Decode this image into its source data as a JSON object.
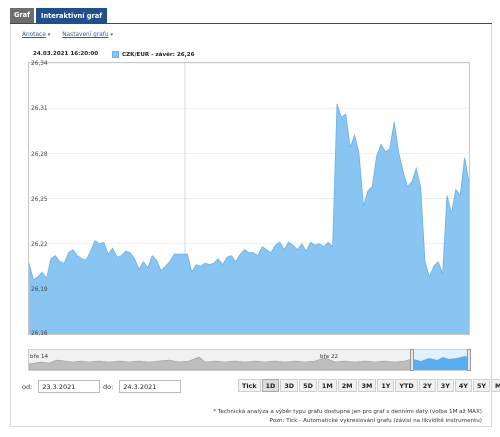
{
  "tabs": [
    {
      "label": "Graf",
      "active": false
    },
    {
      "label": "Interaktivní graf",
      "active": true
    }
  ],
  "menu": {
    "items": [
      {
        "label": "Anotace"
      },
      {
        "label": "Nastavení grafu"
      }
    ]
  },
  "chart": {
    "timestamp": "24.03.2021 16:20:00",
    "legend_label": "CZK/EUR - závěr: 26,26",
    "series_color": "#88c5f2",
    "line_color": "#6ab0e6",
    "y_ticks": [
      "26,34",
      "26,31",
      "26,28",
      "26,25",
      "26,22",
      "26,19",
      "26,16"
    ]
  },
  "chart_data": {
    "type": "area",
    "series": [
      {
        "name": "CZK/EUR",
        "values": [
          26.207,
          26.196,
          26.198,
          26.201,
          26.197,
          26.21,
          26.212,
          26.208,
          26.207,
          26.214,
          26.216,
          26.212,
          26.21,
          26.209,
          26.215,
          26.222,
          26.22,
          26.221,
          26.213,
          26.217,
          26.211,
          26.212,
          26.215,
          26.214,
          26.21,
          26.203,
          26.208,
          26.204,
          26.212,
          26.209,
          26.202,
          26.205,
          26.208,
          26.213,
          26.213,
          26.213,
          26.213,
          26.201,
          26.206,
          26.205,
          26.207,
          26.206,
          26.207,
          26.21,
          26.206,
          26.211,
          26.212,
          26.208,
          26.213,
          26.216,
          26.214,
          26.214,
          26.212,
          26.218,
          26.216,
          26.214,
          26.219,
          26.221,
          26.216,
          26.221,
          26.219,
          26.216,
          26.22,
          26.215,
          26.221,
          26.219,
          26.22,
          26.218,
          26.221,
          26.218,
          26.313,
          26.304,
          26.306,
          26.284,
          26.292,
          26.28,
          26.245,
          26.255,
          26.258,
          26.278,
          26.286,
          26.281,
          26.283,
          26.301,
          26.281,
          26.268,
          26.258,
          26.261,
          26.27,
          26.258,
          26.208,
          26.198,
          26.205,
          26.208,
          26.2,
          26.252,
          26.24,
          26.256,
          26.252,
          26.277,
          26.261
        ]
      }
    ],
    "ylim": [
      26.16,
      26.34
    ],
    "y_ticks": [
      26.16,
      26.19,
      26.22,
      26.25,
      26.28,
      26.31,
      26.34
    ],
    "grid": "horizontal",
    "legend": "top-left"
  },
  "navigator": {
    "label_left": "bře 14",
    "label_right": "bře 22"
  },
  "dates": {
    "from_label": "od:",
    "from_value": "23.3.2021",
    "to_label": "do:",
    "to_value": "24.3.2021"
  },
  "periods": [
    "Tick",
    "1D",
    "3D",
    "5D",
    "1M",
    "2M",
    "3M",
    "1Y",
    "YTD",
    "2Y",
    "3Y",
    "4Y",
    "5Y",
    "Max"
  ],
  "selected_period": "1D",
  "notes": {
    "line1": "* Technická analýza a výběr typu grafu dostupné jen pro graf s denními daty (volba 1M až MAX)",
    "line2": "Pozn: Tick - Automatické vykreslování grafu (závisí na likviditě instrumentu)"
  }
}
